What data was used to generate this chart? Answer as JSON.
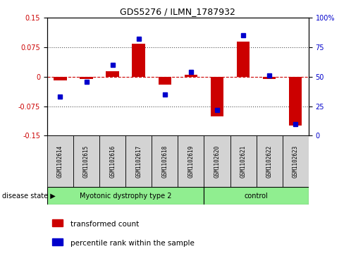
{
  "title": "GDS5276 / ILMN_1787932",
  "samples": [
    "GSM1102614",
    "GSM1102615",
    "GSM1102616",
    "GSM1102617",
    "GSM1102618",
    "GSM1102619",
    "GSM1102620",
    "GSM1102621",
    "GSM1102622",
    "GSM1102623"
  ],
  "red_values": [
    -0.01,
    -0.005,
    0.015,
    0.085,
    -0.02,
    0.005,
    -0.1,
    0.09,
    -0.005,
    -0.125
  ],
  "blue_values": [
    33,
    46,
    60,
    82,
    35,
    54,
    22,
    85,
    51,
    10
  ],
  "group1_count": 6,
  "group2_count": 4,
  "group1_label": "Myotonic dystrophy type 2",
  "group2_label": "control",
  "group_color": "#90EE90",
  "ylim_left": [
    -0.15,
    0.15
  ],
  "ylim_right": [
    0,
    100
  ],
  "yticks_left": [
    -0.15,
    -0.075,
    0,
    0.075,
    0.15
  ],
  "yticks_right": [
    0,
    25,
    50,
    75,
    100
  ],
  "ytick_labels_left": [
    "-0.15",
    "-0.075",
    "0",
    "0.075",
    "0.15"
  ],
  "ytick_labels_right": [
    "0",
    "25",
    "50",
    "75",
    "100%"
  ],
  "red_color": "#CC0000",
  "blue_color": "#0000CC",
  "zero_line_color": "#CC0000",
  "dotted_line_color": "#555555",
  "bg_plot": "#FFFFFF",
  "bg_labels": "#D3D3D3",
  "legend_labels": [
    "transformed count",
    "percentile rank within the sample"
  ],
  "disease_state_label": "disease state"
}
